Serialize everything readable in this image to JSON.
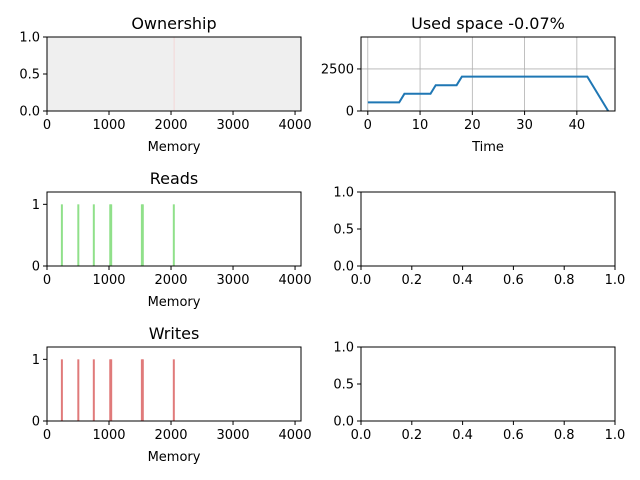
{
  "chart_data": [
    {
      "id": "ownership",
      "type": "heatmap",
      "title": "Ownership",
      "xlabel": "Memory",
      "ylabel": "",
      "xlim": [
        0,
        4096
      ],
      "ylim": [
        0,
        1
      ],
      "xticks": [
        0,
        1000,
        2000,
        3000,
        4000
      ],
      "yticks": [
        0,
        0.5,
        1
      ],
      "ytick_labels": [
        "0.0",
        "0.5",
        "1.0"
      ],
      "fill_color": "#efefef",
      "marker_lines": [
        {
          "x": 2050,
          "color": "#f3d6d6"
        }
      ],
      "grid": false
    },
    {
      "id": "used-space",
      "type": "line",
      "title": "Used space -0.07%",
      "xlabel": "Time",
      "ylabel": "",
      "xlim": [
        -1.3,
        47.3
      ],
      "ylim": [
        0,
        4400
      ],
      "xticks": [
        0,
        10,
        20,
        30,
        40
      ],
      "yticks": [
        0,
        2500
      ],
      "grid": true,
      "series": [
        {
          "color": "#1f77b4",
          "x": [
            0,
            6,
            7,
            12,
            13,
            17,
            18,
            42,
            46
          ],
          "y": [
            512,
            512,
            1024,
            1024,
            1536,
            1536,
            2048,
            2048,
            0
          ]
        }
      ]
    },
    {
      "id": "reads",
      "type": "bar",
      "title": "Reads",
      "xlabel": "Memory",
      "ylabel": "",
      "xlim": [
        0,
        4096
      ],
      "ylim": [
        0,
        1.2
      ],
      "xticks": [
        0,
        1000,
        2000,
        3000,
        4000
      ],
      "yticks": [
        0,
        1
      ],
      "color": "#90e08a",
      "x": [
        240,
        505,
        755,
        1020,
        1035,
        1530,
        1545,
        2045
      ],
      "values": [
        1,
        1,
        1,
        1,
        1,
        1,
        1,
        1
      ],
      "grid": false
    },
    {
      "id": "empty-1",
      "type": "line",
      "title": "",
      "xlabel": "",
      "ylabel": "",
      "xlim": [
        0,
        1
      ],
      "ylim": [
        0,
        1
      ],
      "xticks": [
        0,
        0.2,
        0.4,
        0.6,
        0.8,
        1
      ],
      "xtick_labels": [
        "0.0",
        "0.2",
        "0.4",
        "0.6",
        "0.8",
        "1.0"
      ],
      "yticks": [
        0,
        0.5,
        1
      ],
      "ytick_labels": [
        "0.0",
        "0.5",
        "1.0"
      ],
      "series": [],
      "grid": false
    },
    {
      "id": "writes",
      "type": "bar",
      "title": "Writes",
      "xlabel": "Memory",
      "ylabel": "",
      "xlim": [
        0,
        4096
      ],
      "ylim": [
        0,
        1.2
      ],
      "xticks": [
        0,
        1000,
        2000,
        3000,
        4000
      ],
      "yticks": [
        0,
        1
      ],
      "color": "#e07a7a",
      "x": [
        240,
        505,
        755,
        1020,
        1035,
        1530,
        1545,
        2045
      ],
      "values": [
        1,
        1,
        1,
        1,
        1,
        1,
        1,
        1
      ],
      "grid": false
    },
    {
      "id": "empty-2",
      "type": "line",
      "title": "",
      "xlabel": "",
      "ylabel": "",
      "xlim": [
        0,
        1
      ],
      "ylim": [
        0,
        1
      ],
      "xticks": [
        0,
        0.2,
        0.4,
        0.6,
        0.8,
        1
      ],
      "xtick_labels": [
        "0.0",
        "0.2",
        "0.4",
        "0.6",
        "0.8",
        "1.0"
      ],
      "yticks": [
        0,
        0.5,
        1
      ],
      "ytick_labels": [
        "0.0",
        "0.5",
        "1.0"
      ],
      "series": [],
      "grid": false
    }
  ]
}
